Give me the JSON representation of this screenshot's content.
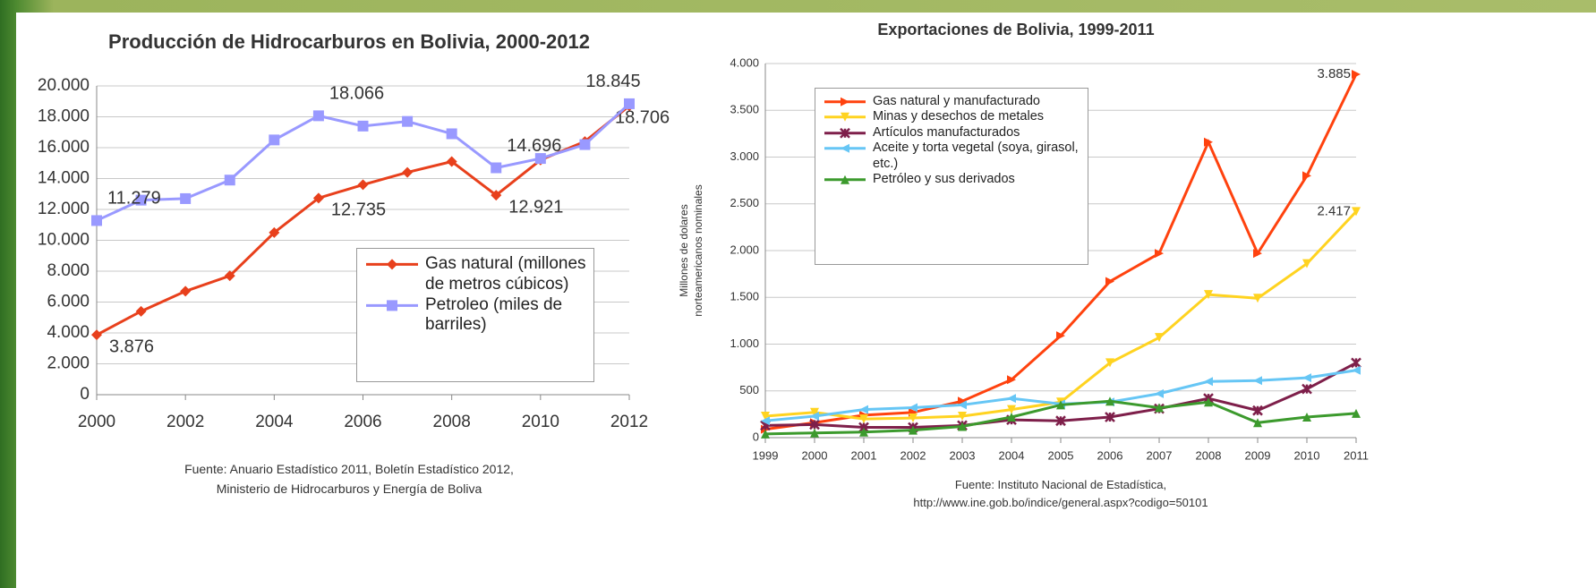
{
  "chart_data": [
    {
      "type": "line",
      "title": "Producción de Hidrocarburos en Bolivia, 2000-2012",
      "x": [
        2000,
        2001,
        2002,
        2003,
        2004,
        2005,
        2006,
        2007,
        2008,
        2009,
        2010,
        2011,
        2012
      ],
      "xlim": [
        2000,
        2012
      ],
      "xticks": [
        2000,
        2002,
        2004,
        2006,
        2008,
        2010,
        2012
      ],
      "ylim": [
        0,
        20000
      ],
      "yticks": [
        0,
        {
          "value": 2000,
          "label": "2.000"
        },
        {
          "value": 4000,
          "label": "4.000"
        },
        {
          "value": 6000,
          "label": "6.000"
        },
        {
          "value": 8000,
          "label": "8.000"
        },
        {
          "value": 10000,
          "label": "10.000"
        },
        {
          "value": 12000,
          "label": "12.000"
        },
        {
          "value": 14000,
          "label": "14.000"
        },
        {
          "value": 16000,
          "label": "16.000"
        },
        {
          "value": 18000,
          "label": "18.000"
        },
        {
          "value": 20000,
          "label": "20.000"
        }
      ],
      "grid": true,
      "series": [
        {
          "name": "Gas natural (millones de metros cúbicos)",
          "color": "#e8401c",
          "marker": "diamond",
          "values": [
            3876,
            5400,
            6700,
            7700,
            10500,
            12735,
            13600,
            14400,
            15100,
            12921,
            15200,
            16400,
            18706
          ],
          "value_labels": [
            "3.876",
            null,
            null,
            null,
            null,
            "12.735",
            null,
            null,
            null,
            "12.921",
            null,
            null,
            "18.706"
          ]
        },
        {
          "name": "Petroleo (miles de barriles)",
          "color": "#9999ff",
          "marker": "square",
          "values": [
            11279,
            12600,
            12700,
            13900,
            16500,
            18066,
            17400,
            17700,
            16900,
            14696,
            15300,
            16200,
            18845
          ],
          "value_labels": [
            "11.279",
            null,
            null,
            null,
            null,
            "18.066",
            null,
            null,
            null,
            "14.696",
            null,
            null,
            "18.845"
          ]
        }
      ],
      "source": [
        "Fuente: Anuario Estadístico 2011, Boletín Estadístico 2012,",
        "Ministerio de Hidrocarburos y Energía de Boliva"
      ]
    },
    {
      "type": "line",
      "title": "Exportaciones de Bolivia, 1999-2011",
      "ylabel": [
        "Millones de dolares",
        "norteamericanos nominales"
      ],
      "x": [
        1999,
        2000,
        2001,
        2002,
        2003,
        2004,
        2005,
        2006,
        2007,
        2008,
        2009,
        2010,
        2011
      ],
      "xlim": [
        1999,
        2011
      ],
      "xticks": [
        1999,
        2000,
        2001,
        2002,
        2003,
        2004,
        2005,
        2006,
        2007,
        2008,
        2009,
        2010,
        2011
      ],
      "ylim": [
        0,
        4000
      ],
      "yticks": [
        0,
        500,
        {
          "value": 1000,
          "label": "1.000"
        },
        {
          "value": 1500,
          "label": "1.500"
        },
        {
          "value": 2000,
          "label": "2.000"
        },
        {
          "value": 2500,
          "label": "2.500"
        },
        {
          "value": 3000,
          "label": "3.000"
        },
        {
          "value": 3500,
          "label": "3.500"
        },
        {
          "value": 4000,
          "label": "4.000"
        }
      ],
      "grid": true,
      "series": [
        {
          "name": "Gas natural y manufacturado",
          "color": "#ff420e",
          "marker": "tri-right",
          "values": [
            90,
            160,
            240,
            270,
            390,
            620,
            1090,
            1670,
            1970,
            3160,
            1970,
            2800,
            3885
          ],
          "value_labels": [
            null,
            null,
            null,
            null,
            null,
            null,
            null,
            null,
            null,
            null,
            null,
            null,
            "3.885"
          ]
        },
        {
          "name": "Minas y desechos de metales",
          "color": "#ffd320",
          "marker": "tri-down",
          "values": [
            230,
            270,
            200,
            210,
            230,
            300,
            380,
            800,
            1070,
            1530,
            1490,
            1860,
            2417
          ],
          "value_labels": [
            null,
            null,
            null,
            null,
            null,
            null,
            null,
            null,
            null,
            null,
            null,
            null,
            "2.417"
          ]
        },
        {
          "name": "Artículos manufacturados",
          "color": "#7e1f4a",
          "marker": "cross",
          "values": [
            130,
            140,
            110,
            110,
            130,
            190,
            180,
            220,
            310,
            420,
            290,
            520,
            800
          ]
        },
        {
          "name": "Aceite y torta vegetal (soya, girasol, etc.)",
          "color": "#66c6f5",
          "marker": "tri-left",
          "values": [
            180,
            230,
            300,
            320,
            350,
            420,
            360,
            380,
            470,
            600,
            610,
            640,
            720
          ]
        },
        {
          "name": "Petróleo y sus derivados",
          "color": "#3c9a2d",
          "marker": "tri-up",
          "values": [
            40,
            50,
            60,
            80,
            120,
            220,
            350,
            390,
            320,
            380,
            160,
            220,
            260
          ]
        }
      ],
      "source": [
        "Fuente: Instituto Nacional de Estadística,",
        "http://www.ine.gob.bo/indice/general.aspx?codigo=50101"
      ]
    }
  ]
}
